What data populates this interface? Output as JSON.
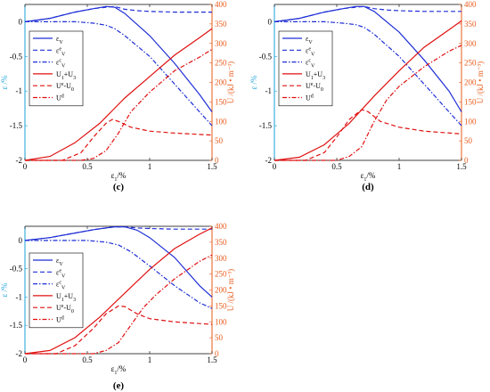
{
  "chart_data": [
    {
      "type": "line",
      "panel_label": "(c)",
      "xlabel": "ε1/%",
      "ylabel_left": "ε /%",
      "ylabel_right": "U /(kJ • m⁻³)",
      "xlim": [
        0,
        1.5
      ],
      "ylim_left": [
        -2,
        0.25
      ],
      "ylim_right": [
        0,
        400
      ],
      "xticks": [
        "0",
        "0.5",
        "1",
        "1.5"
      ],
      "yticks_left": [
        "0",
        "-0.5",
        "-1",
        "-1.5",
        "-2"
      ],
      "yticks_right": [
        "0",
        "50",
        "100",
        "150",
        "200",
        "250",
        "300",
        "350",
        "400"
      ],
      "legend_position": "upper-left",
      "series": [
        {
          "name": "εV",
          "axis": "left",
          "color": "#1f2fd6",
          "style": "solid",
          "x": [
            0,
            0.2,
            0.4,
            0.55,
            0.65,
            0.72,
            0.8,
            1.0,
            1.2,
            1.4,
            1.5
          ],
          "y": [
            0,
            0.05,
            0.14,
            0.19,
            0.22,
            0.21,
            0.12,
            -0.2,
            -0.6,
            -1.05,
            -1.3
          ]
        },
        {
          "name": "εeV",
          "axis": "left",
          "color": "#1f2fd6",
          "style": "dash",
          "x": [
            0,
            0.2,
            0.4,
            0.55,
            0.65,
            0.72,
            0.8,
            0.9,
            1.0,
            1.2,
            1.4,
            1.5
          ],
          "y": [
            0,
            0.05,
            0.14,
            0.19,
            0.21,
            0.22,
            0.18,
            0.16,
            0.15,
            0.14,
            0.14,
            0.14
          ]
        },
        {
          "name": "εcV",
          "axis": "left",
          "color": "#1f2fd6",
          "style": "dashdot",
          "x": [
            0,
            0.4,
            0.55,
            0.65,
            0.72,
            0.8,
            1.0,
            1.2,
            1.4,
            1.5
          ],
          "y": [
            0,
            0,
            -0.02,
            -0.05,
            -0.1,
            -0.2,
            -0.5,
            -0.9,
            -1.3,
            -1.5
          ]
        },
        {
          "name": "U1+U3",
          "axis": "right",
          "color": "#e01010",
          "style": "solid",
          "x": [
            0,
            0.2,
            0.4,
            0.6,
            0.8,
            1.0,
            1.2,
            1.4,
            1.5
          ],
          "y": [
            0,
            10,
            45,
            95,
            160,
            215,
            270,
            315,
            338
          ]
        },
        {
          "name": "Ue-U0",
          "axis": "right",
          "color": "#e01010",
          "style": "dash",
          "x": [
            0,
            0.3,
            0.45,
            0.55,
            0.65,
            0.7,
            0.75,
            0.85,
            1.0,
            1.2,
            1.5
          ],
          "y": [
            0,
            0,
            20,
            60,
            95,
            105,
            100,
            85,
            75,
            70,
            65
          ]
        },
        {
          "name": "Ud",
          "axis": "right",
          "color": "#e01010",
          "style": "dashdot",
          "x": [
            0,
            0.45,
            0.55,
            0.65,
            0.75,
            0.85,
            1.0,
            1.2,
            1.4,
            1.5
          ],
          "y": [
            0,
            0,
            5,
            25,
            70,
            125,
            175,
            230,
            265,
            285
          ]
        }
      ]
    },
    {
      "type": "line",
      "panel_label": "(d)",
      "xlabel": "ε1/%",
      "ylabel_left": "ε /%",
      "ylabel_right": "U /(kJ • m⁻³)",
      "xlim": [
        0,
        1.5
      ],
      "ylim_left": [
        -2,
        0.25
      ],
      "ylim_right": [
        0,
        400
      ],
      "xticks": [
        "0",
        "0.5",
        "1",
        "1.5"
      ],
      "yticks_left": [
        "0",
        "-0.5",
        "-1",
        "-1.5",
        "-2"
      ],
      "yticks_right": [
        "0",
        "50",
        "100",
        "150",
        "200",
        "250",
        "300",
        "350",
        "400"
      ],
      "legend_position": "upper-left",
      "series": [
        {
          "name": "εV",
          "axis": "left",
          "color": "#1f2fd6",
          "style": "solid",
          "x": [
            0,
            0.2,
            0.4,
            0.55,
            0.65,
            0.72,
            0.8,
            1.0,
            1.2,
            1.4,
            1.5
          ],
          "y": [
            0,
            0.05,
            0.14,
            0.19,
            0.22,
            0.22,
            0.15,
            -0.15,
            -0.55,
            -1.0,
            -1.3
          ]
        },
        {
          "name": "εeV",
          "axis": "left",
          "color": "#1f2fd6",
          "style": "dash",
          "x": [
            0,
            0.2,
            0.4,
            0.55,
            0.65,
            0.72,
            0.8,
            0.9,
            1.0,
            1.2,
            1.4,
            1.5
          ],
          "y": [
            0,
            0.05,
            0.14,
            0.19,
            0.21,
            0.22,
            0.19,
            0.17,
            0.16,
            0.15,
            0.15,
            0.15
          ]
        },
        {
          "name": "εcV",
          "axis": "left",
          "color": "#1f2fd6",
          "style": "dashdot",
          "x": [
            0,
            0.4,
            0.55,
            0.65,
            0.72,
            0.8,
            1.0,
            1.2,
            1.4,
            1.5
          ],
          "y": [
            0,
            0,
            -0.02,
            -0.04,
            -0.08,
            -0.18,
            -0.5,
            -0.9,
            -1.3,
            -1.5
          ]
        },
        {
          "name": "U1+U3",
          "axis": "right",
          "color": "#e01010",
          "style": "solid",
          "x": [
            0,
            0.2,
            0.4,
            0.6,
            0.8,
            1.0,
            1.2,
            1.4,
            1.5
          ],
          "y": [
            0,
            8,
            40,
            95,
            165,
            230,
            290,
            335,
            358
          ]
        },
        {
          "name": "Ue-U0",
          "axis": "right",
          "color": "#e01010",
          "style": "dash",
          "x": [
            0,
            0.25,
            0.4,
            0.5,
            0.6,
            0.7,
            0.75,
            0.85,
            1.0,
            1.2,
            1.5
          ],
          "y": [
            0,
            0,
            20,
            60,
            105,
            130,
            125,
            100,
            85,
            75,
            68
          ]
        },
        {
          "name": "Ud",
          "axis": "right",
          "color": "#e01010",
          "style": "dashdot",
          "x": [
            0,
            0.5,
            0.6,
            0.7,
            0.8,
            0.9,
            1.0,
            1.2,
            1.4,
            1.5
          ],
          "y": [
            0,
            0,
            10,
            35,
            100,
            155,
            190,
            240,
            280,
            295
          ]
        }
      ]
    },
    {
      "type": "line",
      "panel_label": "(e)",
      "xlabel": "ε1/%",
      "ylabel_left": "ε /%",
      "ylabel_right": "U /(kJ • m⁻³)",
      "xlim": [
        0,
        1.5
      ],
      "ylim_left": [
        -2,
        0.25
      ],
      "ylim_right": [
        0,
        400
      ],
      "xticks": [
        "0",
        "0.5",
        "1",
        "1.5"
      ],
      "yticks_left": [
        "0",
        "-0.5",
        "-1",
        "-1.5",
        "-2"
      ],
      "yticks_right": [
        "0",
        "50",
        "100",
        "150",
        "200",
        "250",
        "300",
        "350",
        "400"
      ],
      "legend_position": "upper-left",
      "series": [
        {
          "name": "εV",
          "axis": "left",
          "color": "#1f2fd6",
          "style": "solid",
          "x": [
            0,
            0.2,
            0.4,
            0.55,
            0.65,
            0.72,
            0.8,
            0.9,
            1.0,
            1.2,
            1.4,
            1.5
          ],
          "y": [
            0,
            0.05,
            0.13,
            0.19,
            0.22,
            0.24,
            0.24,
            0.18,
            0.05,
            -0.3,
            -0.8,
            -1.0
          ]
        },
        {
          "name": "εeV",
          "axis": "left",
          "color": "#1f2fd6",
          "style": "dash",
          "x": [
            0,
            0.2,
            0.4,
            0.55,
            0.65,
            0.72,
            0.8,
            0.9,
            1.0,
            1.2,
            1.4,
            1.5
          ],
          "y": [
            0,
            0.05,
            0.13,
            0.19,
            0.22,
            0.24,
            0.24,
            0.22,
            0.21,
            0.2,
            0.2,
            0.2
          ]
        },
        {
          "name": "εcV",
          "axis": "left",
          "color": "#1f2fd6",
          "style": "dashdot",
          "x": [
            0,
            0.5,
            0.65,
            0.75,
            0.85,
            1.0,
            1.2,
            1.4,
            1.5
          ],
          "y": [
            0,
            0,
            -0.03,
            -0.08,
            -0.2,
            -0.45,
            -0.8,
            -1.1,
            -1.2
          ]
        },
        {
          "name": "U1+U3",
          "axis": "right",
          "color": "#e01010",
          "style": "solid",
          "x": [
            0,
            0.2,
            0.4,
            0.6,
            0.8,
            1.0,
            1.2,
            1.4,
            1.5
          ],
          "y": [
            0,
            10,
            50,
            115,
            190,
            265,
            330,
            375,
            395
          ]
        },
        {
          "name": "Ue-U0",
          "axis": "right",
          "color": "#e01010",
          "style": "dash",
          "x": [
            0,
            0.25,
            0.4,
            0.55,
            0.65,
            0.75,
            0.8,
            0.9,
            1.0,
            1.2,
            1.5
          ],
          "y": [
            0,
            0,
            25,
            80,
            125,
            150,
            148,
            125,
            110,
            100,
            92
          ]
        },
        {
          "name": "Ud",
          "axis": "right",
          "color": "#e01010",
          "style": "dashdot",
          "x": [
            0,
            0.55,
            0.65,
            0.75,
            0.85,
            0.95,
            1.05,
            1.2,
            1.4,
            1.5
          ],
          "y": [
            0,
            0,
            10,
            35,
            90,
            145,
            185,
            235,
            290,
            310
          ]
        }
      ]
    }
  ]
}
